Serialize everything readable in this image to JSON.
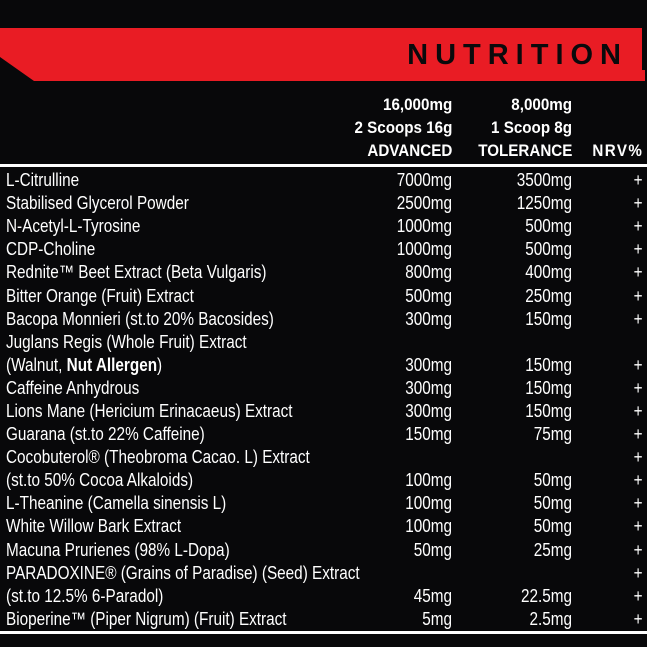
{
  "banner": {
    "title": "NUTRITION"
  },
  "colors": {
    "red": "#e91c24",
    "background": "#08080a",
    "text": "#ffffff",
    "banner_text": "#0a0a0c"
  },
  "header": {
    "advanced": {
      "total": "16,000mg",
      "serving": "2 Scoops 16g",
      "label": "ADVANCED"
    },
    "tolerance": {
      "total": "8,000mg",
      "serving": "1 Scoop 8g",
      "label": "TOLERANCE"
    },
    "nrv": {
      "label": "NRV%"
    }
  },
  "table": {
    "rows": [
      {
        "name": [
          {
            "t": "L-Citrulline"
          }
        ],
        "advanced": "7000mg",
        "tolerance": "3500mg",
        "nrv": "+"
      },
      {
        "name": [
          {
            "t": "Stabilised Glycerol Powder"
          }
        ],
        "advanced": "2500mg",
        "tolerance": "1250mg",
        "nrv": "+"
      },
      {
        "name": [
          {
            "t": "N-Acetyl-L-Tyrosine"
          }
        ],
        "advanced": "1000mg",
        "tolerance": "500mg",
        "nrv": "+"
      },
      {
        "name": [
          {
            "t": "CDP-Choline"
          }
        ],
        "advanced": "1000mg",
        "tolerance": "500mg",
        "nrv": "+"
      },
      {
        "name": [
          {
            "t": "Rednite™ Beet Extract (Beta Vulgaris)"
          }
        ],
        "advanced": "800mg",
        "tolerance": "400mg",
        "nrv": "+"
      },
      {
        "name": [
          {
            "t": "Bitter Orange (Fruit) Extract"
          }
        ],
        "advanced": "500mg",
        "tolerance": "250mg",
        "nrv": "+"
      },
      {
        "name": [
          {
            "t": "Bacopa Monnieri (st.to 20% Bacosides)"
          }
        ],
        "advanced": "300mg",
        "tolerance": "150mg",
        "nrv": "+"
      },
      {
        "name": [
          {
            "t": "Juglans Regis (Whole Fruit) Extract"
          }
        ],
        "advanced": "",
        "tolerance": "",
        "nrv": ""
      },
      {
        "name": [
          {
            "t": "(Walnut, "
          },
          {
            "t": "Nut Allergen",
            "b": true
          },
          {
            "t": ")"
          }
        ],
        "advanced": "300mg",
        "tolerance": "150mg",
        "nrv": "+"
      },
      {
        "name": [
          {
            "t": "Caffeine Anhydrous"
          }
        ],
        "advanced": "300mg",
        "tolerance": "150mg",
        "nrv": "+"
      },
      {
        "name": [
          {
            "t": "Lions Mane (Hericium Erinacaeus) Extract"
          }
        ],
        "advanced": "300mg",
        "tolerance": "150mg",
        "nrv": "+"
      },
      {
        "name": [
          {
            "t": "Guarana (st.to 22% Caffeine)"
          }
        ],
        "advanced": "150mg",
        "tolerance": "75mg",
        "nrv": "+"
      },
      {
        "name": [
          {
            "t": "Cocobuterol® (Theobroma Cacao. L) Extract"
          }
        ],
        "advanced": "",
        "tolerance": "",
        "nrv": "+"
      },
      {
        "name": [
          {
            "t": "(st.to 50% Cocoa Alkaloids)"
          }
        ],
        "advanced": "100mg",
        "tolerance": "50mg",
        "nrv": "+"
      },
      {
        "name": [
          {
            "t": "L-Theanine (Camella sinensis L)"
          }
        ],
        "advanced": "100mg",
        "tolerance": "50mg",
        "nrv": "+"
      },
      {
        "name": [
          {
            "t": "White Willow Bark Extract"
          }
        ],
        "advanced": "100mg",
        "tolerance": "50mg",
        "nrv": "+"
      },
      {
        "name": [
          {
            "t": "Macuna Prurienes (98% L-Dopa)"
          }
        ],
        "advanced": "50mg",
        "tolerance": "25mg",
        "nrv": "+"
      },
      {
        "name": [
          {
            "t": "PARADOXINE® (Grains of Paradise) (Seed) Extract"
          }
        ],
        "advanced": "",
        "tolerance": "",
        "nrv": "+"
      },
      {
        "name": [
          {
            "t": "(st.to 12.5% 6-Paradol)"
          }
        ],
        "advanced": "45mg",
        "tolerance": "22.5mg",
        "nrv": "+"
      },
      {
        "name": [
          {
            "t": "Bioperine™ (Piper Nigrum) (Fruit) Extract"
          }
        ],
        "advanced": "5mg",
        "tolerance": "2.5mg",
        "nrv": "+"
      }
    ]
  }
}
